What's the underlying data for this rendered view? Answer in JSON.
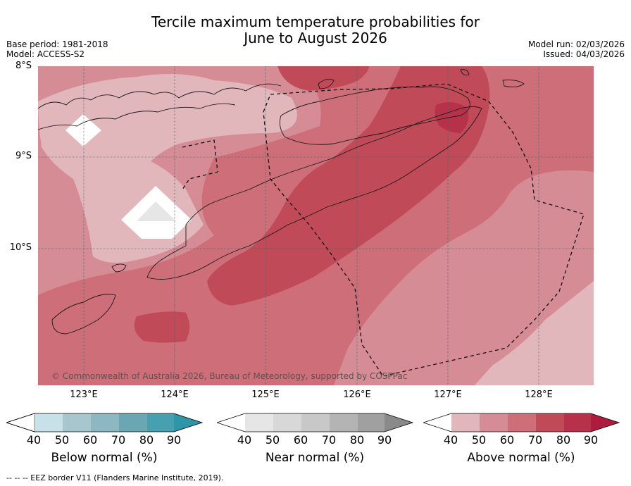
{
  "title_line1": "Tercile maximum temperature probabilities for",
  "title_line2": "June to August 2026",
  "base_period": "Base period: 1981-2018",
  "model": "Model: ACCESS-S2",
  "model_run": "Model run: 02/03/2026",
  "issued": "Issued: 04/03/2026",
  "lat_labels": [
    "8°S",
    "9°S",
    "10°S"
  ],
  "lon_labels": [
    "123°E",
    "124°E",
    "125°E",
    "126°E",
    "127°E",
    "128°E"
  ],
  "credit": "© Commonwealth of Australia 2026, Bureau of Meteorology, supported by COSPPac",
  "footer": "-- -- -- EEZ border V11 (Flanders Marine Institute, 2019).",
  "colorbars": [
    {
      "title": "Below normal (%)",
      "ticks": [
        "40",
        "50",
        "60",
        "70",
        "80",
        "90"
      ],
      "colors": [
        "#c8e0e7",
        "#a8c6cd",
        "#8db8c2",
        "#6aa7b3",
        "#46a0b0",
        "#2f96a8"
      ]
    },
    {
      "title": "Near normal (%)",
      "ticks": [
        "40",
        "50",
        "60",
        "70",
        "80",
        "90"
      ],
      "colors": [
        "#e6e6e6",
        "#d8d8d8",
        "#c8c8c8",
        "#b4b4b4",
        "#a0a0a0",
        "#8a8a8a"
      ]
    },
    {
      "title": "Above normal (%)",
      "ticks": [
        "40",
        "50",
        "60",
        "70",
        "80",
        "90"
      ],
      "colors": [
        "#e1b7bc",
        "#d68c95",
        "#cd6e78",
        "#c14a58",
        "#b8314a",
        "#ad1c3a"
      ]
    }
  ]
}
